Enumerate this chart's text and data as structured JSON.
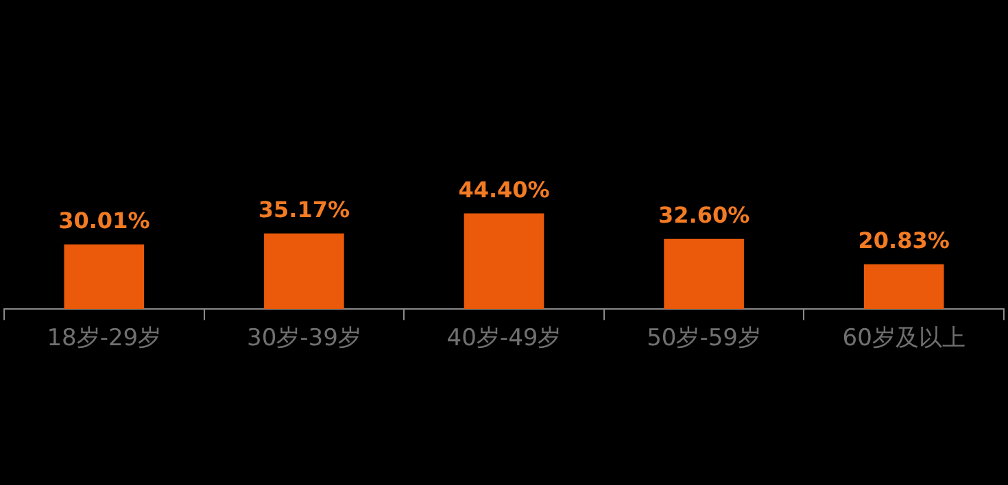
{
  "chart_data": {
    "type": "bar",
    "categories": [
      "18岁-29岁",
      "30岁-39岁",
      "40岁-49岁",
      "50岁-59岁",
      "60岁及以上"
    ],
    "values": [
      30.01,
      35.17,
      44.4,
      32.6,
      20.83
    ],
    "value_labels": [
      "30.01%",
      "35.17%",
      "44.40%",
      "32.60%",
      "20.83%"
    ],
    "color": "#ea5a0a"
  }
}
